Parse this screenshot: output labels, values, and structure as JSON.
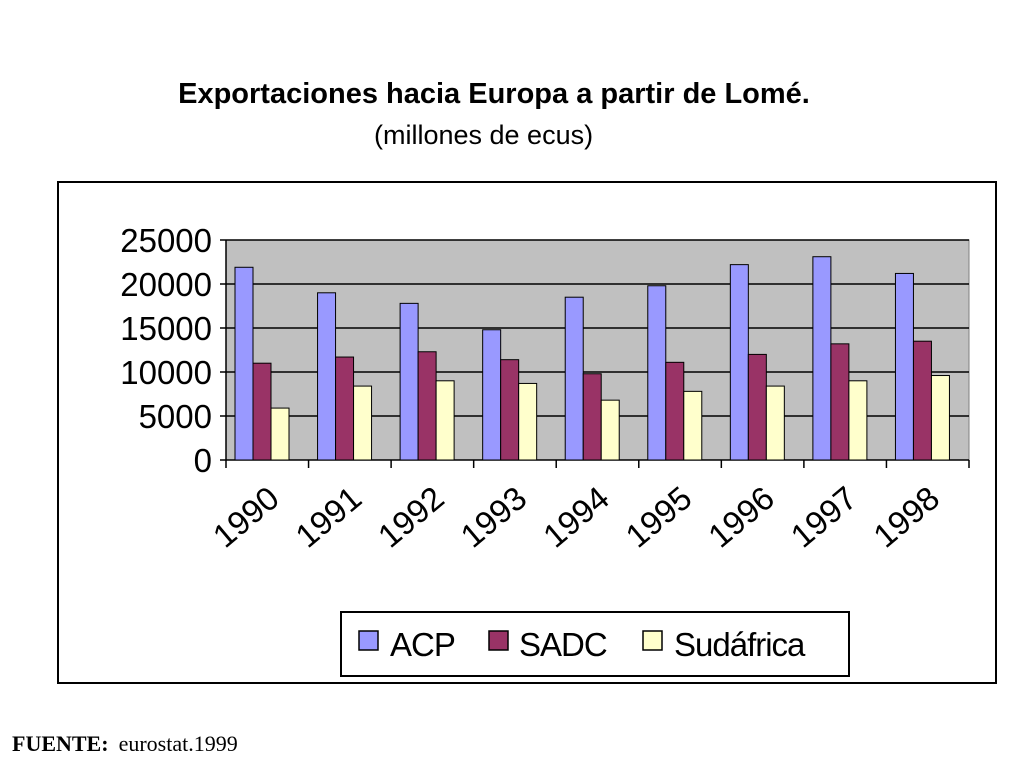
{
  "title": "Exportaciones hacia Europa a partir de Lomé.",
  "subtitle": "(millones de ecus)",
  "source": {
    "label": "FUENTE:",
    "value": "eurostat.1999"
  },
  "chart_data": {
    "type": "bar",
    "title": "Exportaciones hacia Europa a partir de Lomé.",
    "subtitle": "(millones de ecus)",
    "categories": [
      "1990",
      "1991",
      "1992",
      "1993",
      "1994",
      "1995",
      "1996",
      "1997",
      "1998"
    ],
    "series": [
      {
        "name": "ACP",
        "color": "#9999ff",
        "values": [
          21900,
          19000,
          17800,
          14800,
          18500,
          19800,
          22200,
          23100,
          21200
        ]
      },
      {
        "name": "SADC",
        "color": "#993366",
        "values": [
          11000,
          11700,
          12300,
          11400,
          9800,
          11100,
          12000,
          13200,
          13500
        ]
      },
      {
        "name": "Sudáfrica",
        "color": "#ffffcc",
        "values": [
          5900,
          8400,
          9000,
          8700,
          6800,
          7800,
          8400,
          9000,
          9600
        ]
      }
    ],
    "yticks": [
      "0",
      "5000",
      "10000",
      "15000",
      "20000",
      "25000"
    ],
    "ylim": [
      0,
      25000
    ],
    "grid": true,
    "plot_background": "#c0c0c0",
    "legend_position": "bottom"
  }
}
